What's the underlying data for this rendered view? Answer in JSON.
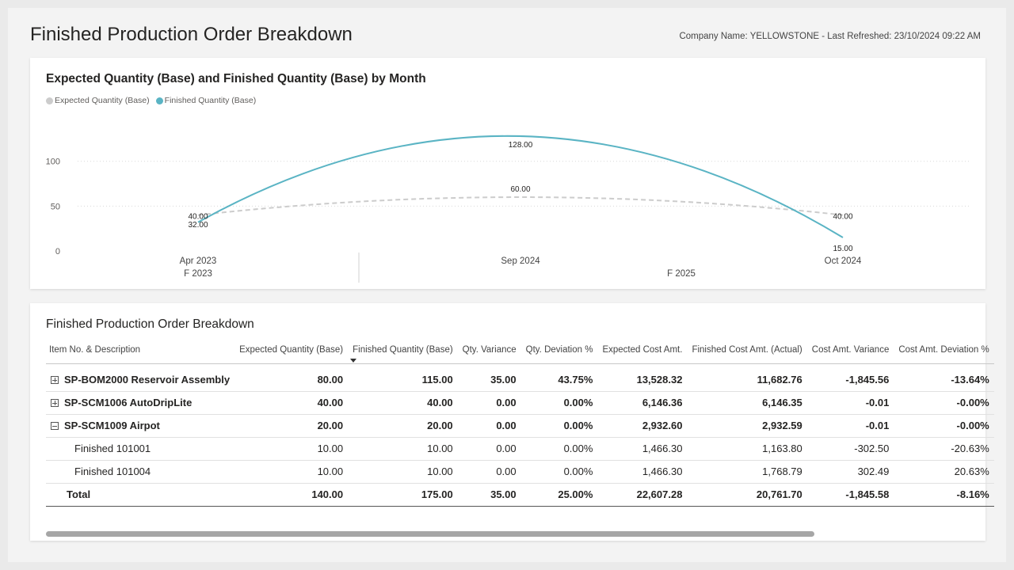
{
  "header": {
    "title": "Finished Production Order Breakdown",
    "meta": "Company Name: YELLOWSTONE - Last Refreshed: 23/10/2024 09:22 AM"
  },
  "colors": {
    "expected": "#cccccc",
    "finished": "#5ab4c4"
  },
  "chart_data": {
    "type": "line",
    "title": "Expected Quantity (Base) and Finished Quantity (Base) by Month",
    "categories": [
      "Apr 2023",
      "Sep 2024",
      "Oct 2024"
    ],
    "fiscal_groups": [
      {
        "label": "F 2023"
      },
      {
        "label": "F 2025"
      }
    ],
    "series": [
      {
        "name": "Expected Quantity (Base)",
        "values": [
          40,
          60,
          40
        ],
        "labels": [
          "40.00",
          "60.00",
          "40.00"
        ],
        "style": "dashed"
      },
      {
        "name": "Finished Quantity (Base)",
        "values": [
          32,
          128,
          15
        ],
        "labels": [
          "32.00",
          "128.00",
          "15.00"
        ],
        "style": "solid"
      }
    ],
    "y_ticks": [
      0,
      50,
      100
    ],
    "ylim": [
      0,
      128
    ],
    "grid": true,
    "legend_position": "top-left"
  },
  "table": {
    "title": "Finished Production Order Breakdown",
    "columns": [
      "Item No. & Description",
      "Expected Quantity (Base)",
      "Finished Quantity (Base)",
      "Qty. Variance",
      "Qty. Deviation %",
      "Expected Cost Amt.",
      "Finished Cost Amt. (Actual)",
      "Cost Amt. Variance",
      "Cost Amt. Deviation %"
    ],
    "rows": [
      {
        "kind": "group",
        "expander": "plus",
        "cells": [
          "SP-BOM2000 Reservoir Assembly",
          "80.00",
          "115.00",
          "35.00",
          "43.75%",
          "13,528.32",
          "11,682.76",
          "-1,845.56",
          "-13.64%"
        ]
      },
      {
        "kind": "group",
        "expander": "plus",
        "cells": [
          "SP-SCM1006 AutoDripLite",
          "40.00",
          "40.00",
          "0.00",
          "0.00%",
          "6,146.36",
          "6,146.35",
          "-0.01",
          "-0.00%"
        ]
      },
      {
        "kind": "group",
        "expander": "minus",
        "cells": [
          "SP-SCM1009 Airpot",
          "20.00",
          "20.00",
          "0.00",
          "0.00%",
          "2,932.60",
          "2,932.59",
          "-0.01",
          "-0.00%"
        ]
      },
      {
        "kind": "child",
        "cells": [
          "Finished 101001",
          "10.00",
          "10.00",
          "0.00",
          "0.00%",
          "1,466.30",
          "1,163.80",
          "-302.50",
          "-20.63%"
        ]
      },
      {
        "kind": "child",
        "cells": [
          "Finished 101004",
          "10.00",
          "10.00",
          "0.00",
          "0.00%",
          "1,466.30",
          "1,768.79",
          "302.49",
          "20.63%"
        ]
      },
      {
        "kind": "total",
        "cells": [
          "Total",
          "140.00",
          "175.00",
          "35.00",
          "25.00%",
          "22,607.28",
          "20,761.70",
          "-1,845.58",
          "-8.16%"
        ]
      }
    ]
  }
}
